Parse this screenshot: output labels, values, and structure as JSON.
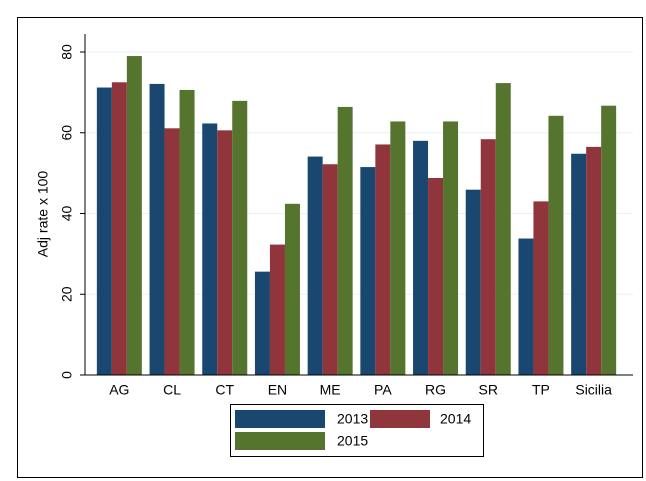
{
  "chart_data": {
    "type": "bar",
    "categories": [
      "AG",
      "CL",
      "CT",
      "EN",
      "ME",
      "PA",
      "RG",
      "SR",
      "TP",
      "Sicilia"
    ],
    "y_label": "Adj rate x 100",
    "series": [
      {
        "name": "2013",
        "color": "#1a476f",
        "values": [
          71.2,
          72.1,
          62.3,
          25.6,
          54.1,
          51.5,
          58.0,
          45.9,
          33.8,
          54.8
        ]
      },
      {
        "name": "2014",
        "color": "#90353b",
        "values": [
          72.5,
          61.1,
          60.6,
          32.3,
          52.2,
          57.1,
          48.8,
          58.4,
          43.0,
          56.5
        ]
      },
      {
        "name": "2015",
        "color": "#55752f",
        "values": [
          79.0,
          70.6,
          67.9,
          42.4,
          66.4,
          62.8,
          62.8,
          72.3,
          64.2,
          66.7
        ]
      }
    ],
    "ylim": [
      0,
      80
    ],
    "yticks": [
      0,
      20,
      40,
      60,
      80
    ],
    "grid": true
  }
}
